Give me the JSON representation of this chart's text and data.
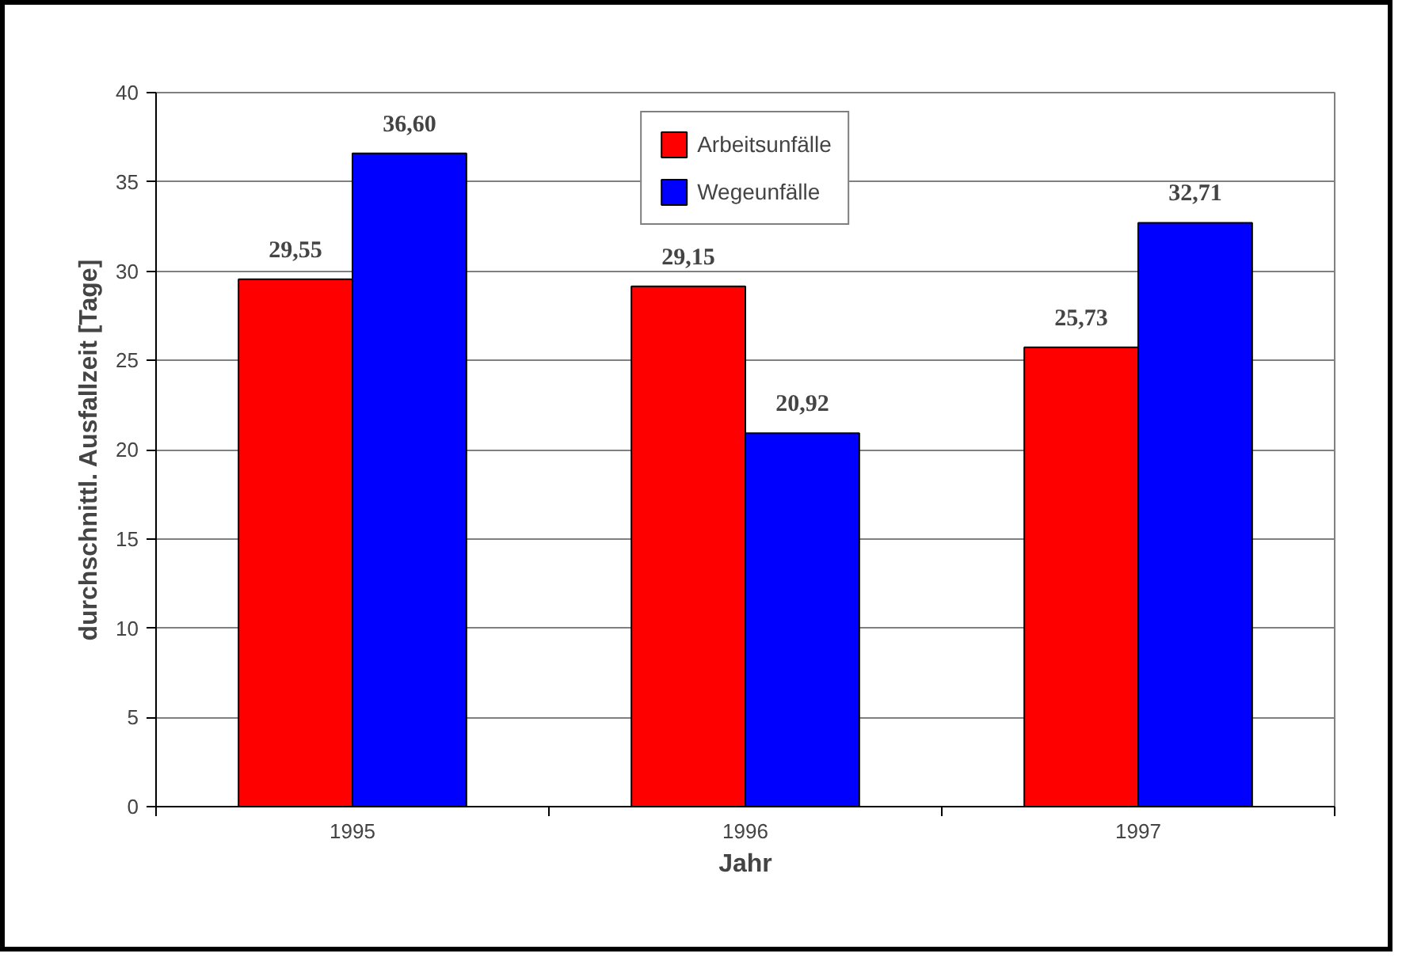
{
  "chart_data": {
    "type": "bar",
    "xlabel": "Jahr",
    "ylabel": "durchschnittl. Ausfallzeit [Tage]",
    "categories": [
      "1995",
      "1996",
      "1997"
    ],
    "series": [
      {
        "name": "Arbeitsunfälle",
        "color": "#ff0000",
        "values": [
          29.55,
          29.15,
          25.73
        ],
        "value_labels": [
          "29,55",
          "29,15",
          "25,73"
        ]
      },
      {
        "name": "Wegeunfälle",
        "color": "#0000ff",
        "values": [
          36.6,
          20.92,
          32.71
        ],
        "value_labels": [
          "36,60",
          "20,92",
          "32,71"
        ]
      }
    ],
    "ylim": [
      0,
      40
    ],
    "yticks": [
      0,
      5,
      10,
      15,
      20,
      25,
      30,
      35,
      40
    ],
    "grid": "y",
    "legend": "top"
  }
}
